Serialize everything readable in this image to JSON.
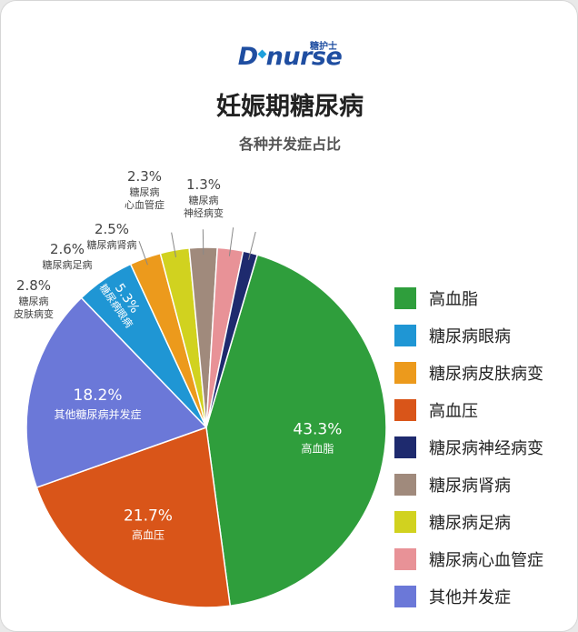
{
  "logo": {
    "text": "nurse",
    "sup": "糖护士",
    "letter": "D"
  },
  "chart_data": {
    "type": "pie",
    "title": "妊娠期糖尿病",
    "subtitle": "各种并发症占比",
    "slices": [
      {
        "name": "高血脂",
        "value": 43.3,
        "label": "43.3%",
        "sublabel": "高血脂",
        "color": "#2f9e3c"
      },
      {
        "name": "高血压",
        "value": 21.7,
        "label": "21.7%",
        "sublabel": "高血压",
        "color": "#d95519"
      },
      {
        "name": "其他并发症",
        "value": 18.2,
        "label": "18.2%",
        "sublabel": "其他糖尿病并发症",
        "color": "#6b78d8"
      },
      {
        "name": "糖尿病眼病",
        "value": 5.3,
        "label": "5.3%",
        "sublabel": "糖尿病眼病",
        "color": "#1f96d4"
      },
      {
        "name": "糖尿病皮肤病变",
        "value": 2.8,
        "label": "2.8%",
        "sublabel": "糖尿病|皮肤病变",
        "color": "#ec9a1c"
      },
      {
        "name": "糖尿病足病",
        "value": 2.6,
        "label": "2.6%",
        "sublabel": "糖尿病足病",
        "color": "#d1d21f"
      },
      {
        "name": "糖尿病肾病",
        "value": 2.5,
        "label": "2.5%",
        "sublabel": "糖尿病肾病",
        "color": "#a08a7c"
      },
      {
        "name": "糖尿病心血管症",
        "value": 2.3,
        "label": "2.3%",
        "sublabel": "糖尿病|心血管症",
        "color": "#e89297"
      },
      {
        "name": "糖尿病神经病变",
        "value": 1.3,
        "label": "1.3%",
        "sublabel": "糖尿病|神经病变",
        "color": "#1e2a6e"
      }
    ],
    "legend": [
      {
        "label": "高血脂",
        "color": "#2f9e3c"
      },
      {
        "label": "糖尿病眼病",
        "color": "#1f96d4"
      },
      {
        "label": "糖尿病皮肤病变",
        "color": "#ec9a1c"
      },
      {
        "label": "高血压",
        "color": "#d95519"
      },
      {
        "label": "糖尿病神经病变",
        "color": "#1e2a6e"
      },
      {
        "label": "糖尿病肾病",
        "color": "#a08a7c"
      },
      {
        "label": "糖尿病足病",
        "color": "#d1d21f"
      },
      {
        "label": "糖尿病心血管症",
        "color": "#e89297"
      },
      {
        "label": "其他并发症",
        "color": "#6b78d8"
      }
    ],
    "legend_position": "right"
  }
}
